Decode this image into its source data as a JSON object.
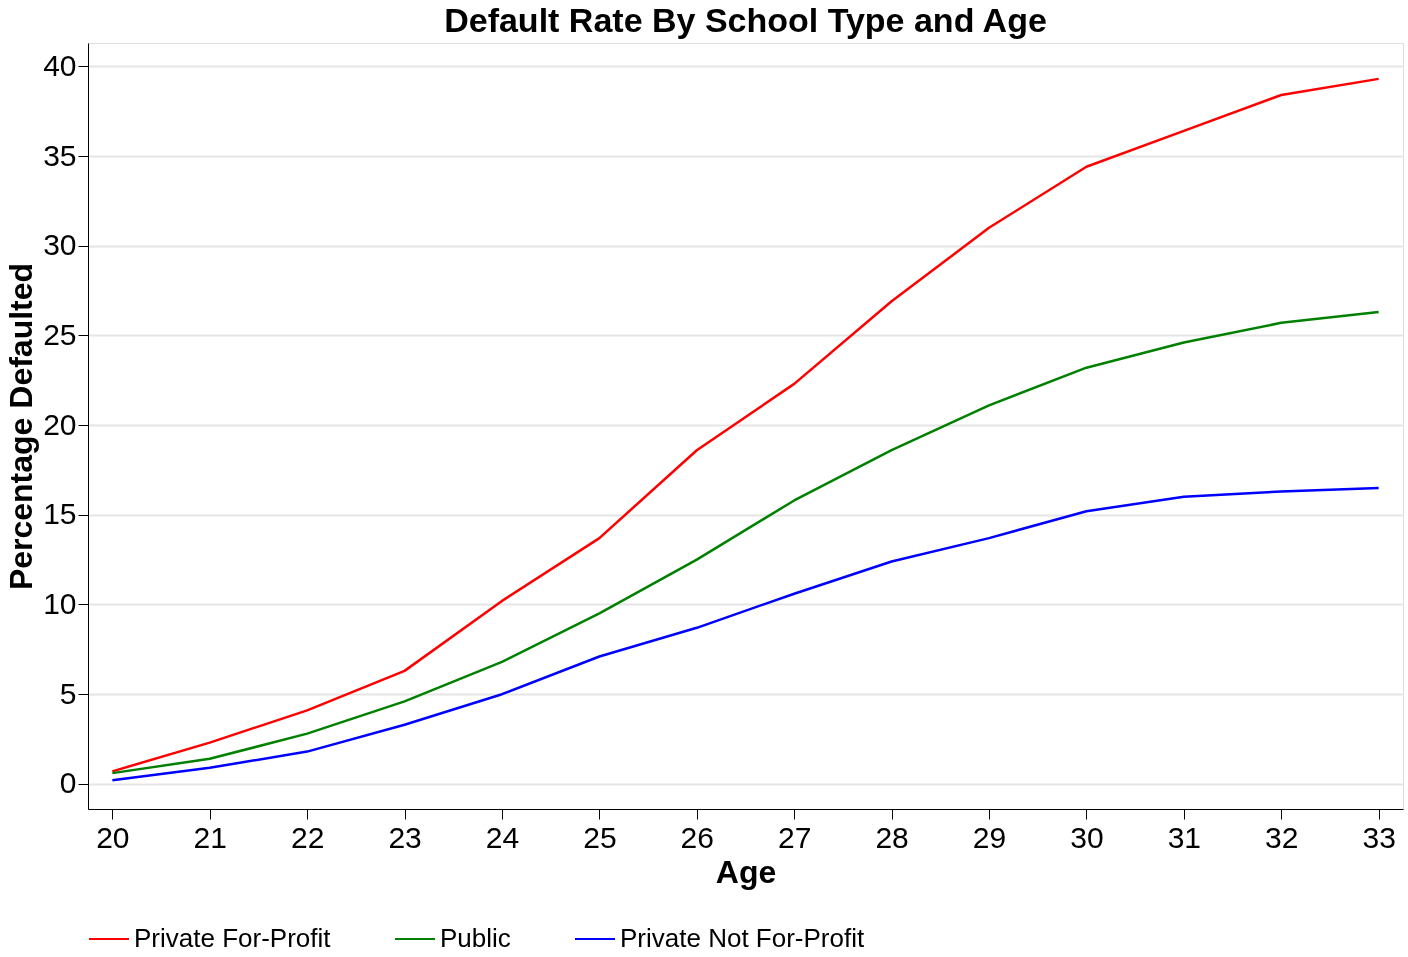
{
  "chart_data": {
    "type": "line",
    "title": "Default Rate By School Type and Age",
    "xlabel": "Age",
    "ylabel": "Percentage Defaulted",
    "x": [
      20,
      21,
      22,
      23,
      24,
      25,
      26,
      27,
      28,
      29,
      30,
      31,
      32,
      33
    ],
    "series": [
      {
        "name": "Private For-Profit",
        "color": "#ff0000",
        "values": [
          0.7,
          2.3,
          4.1,
          6.3,
          10.2,
          13.7,
          18.6,
          22.3,
          26.9,
          31.0,
          34.4,
          36.4,
          38.4,
          39.3
        ]
      },
      {
        "name": "Public",
        "color": "#008000",
        "values": [
          0.6,
          1.4,
          2.8,
          4.6,
          6.8,
          9.5,
          12.5,
          15.8,
          18.6,
          21.1,
          23.2,
          24.6,
          25.7,
          26.3
        ]
      },
      {
        "name": "Private Not For-Profit",
        "color": "#0000ff",
        "values": [
          0.2,
          0.9,
          1.8,
          3.3,
          5.0,
          7.1,
          8.7,
          10.6,
          12.4,
          13.7,
          15.2,
          16.0,
          16.3,
          16.5
        ]
      }
    ],
    "xlim": [
      19.75,
      33.25
    ],
    "xticks": [
      20,
      21,
      22,
      23,
      24,
      25,
      26,
      27,
      28,
      29,
      30,
      31,
      32,
      33
    ],
    "ylim": [
      -1.4,
      41.3
    ],
    "yticks": [
      0,
      5,
      10,
      15,
      20,
      25,
      30,
      35,
      40
    ],
    "grid": "y",
    "legend": "bottom",
    "marker": "none",
    "line_style": "solid"
  }
}
